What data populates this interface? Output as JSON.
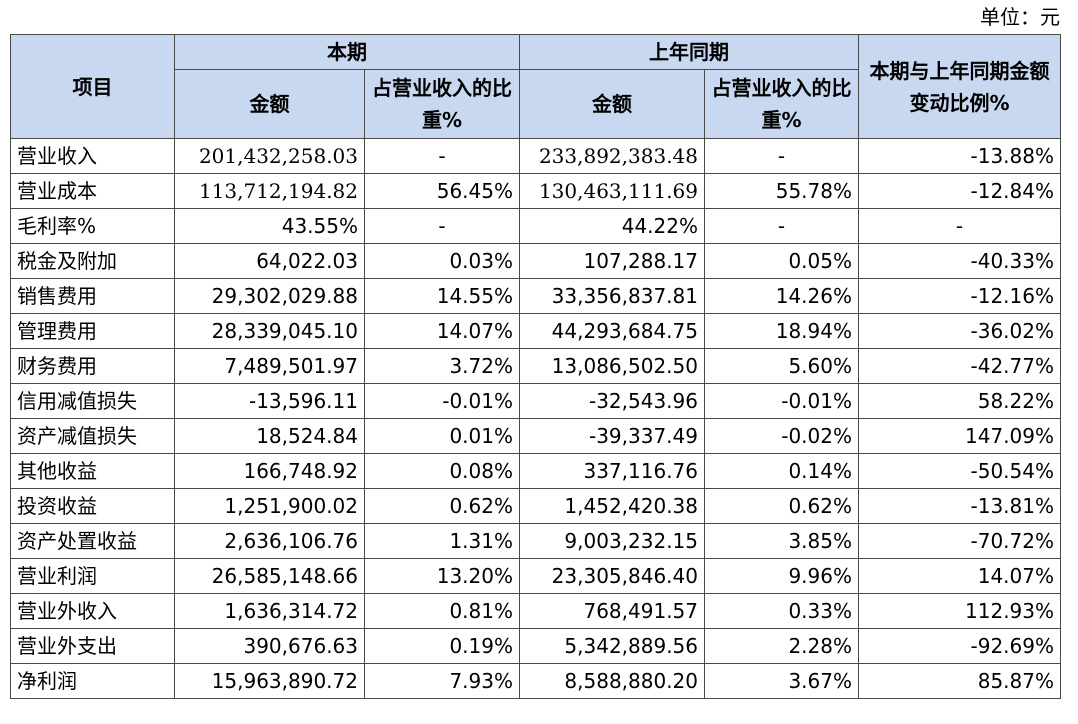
{
  "unit_label": "单位：元",
  "header": {
    "item": "项目",
    "current": "本期",
    "prior": "上年同期",
    "change": "本期与上年同期金额变动比例%",
    "amount": "金额",
    "ratio": "占营业收入的比重%"
  },
  "rows": [
    {
      "item": "营业收入",
      "cur_amount": "201,432,258.03",
      "cur_ratio": "-",
      "prior_amount": "233,892,383.48",
      "prior_ratio": "-",
      "change": "-13.88%"
    },
    {
      "item": "营业成本",
      "cur_amount": "113,712,194.82",
      "cur_ratio": "56.45%",
      "prior_amount": "130,463,111.69",
      "prior_ratio": "55.78%",
      "change": "-12.84%"
    },
    {
      "item": "毛利率%",
      "cur_amount": "43.55%",
      "cur_ratio": "-",
      "prior_amount": "44.22%",
      "prior_ratio": "-",
      "change": "-"
    },
    {
      "item": "税金及附加",
      "cur_amount": "64,022.03",
      "cur_ratio": "0.03%",
      "prior_amount": "107,288.17",
      "prior_ratio": "0.05%",
      "change": "-40.33%"
    },
    {
      "item": "销售费用",
      "cur_amount": "29,302,029.88",
      "cur_ratio": "14.55%",
      "prior_amount": "33,356,837.81",
      "prior_ratio": "14.26%",
      "change": "-12.16%"
    },
    {
      "item": "管理费用",
      "cur_amount": "28,339,045.10",
      "cur_ratio": "14.07%",
      "prior_amount": "44,293,684.75",
      "prior_ratio": "18.94%",
      "change": "-36.02%"
    },
    {
      "item": "财务费用",
      "cur_amount": "7,489,501.97",
      "cur_ratio": "3.72%",
      "prior_amount": "13,086,502.50",
      "prior_ratio": "5.60%",
      "change": "-42.77%"
    },
    {
      "item": "信用减值损失",
      "cur_amount": "-13,596.11",
      "cur_ratio": "-0.01%",
      "prior_amount": "-32,543.96",
      "prior_ratio": "-0.01%",
      "change": "58.22%"
    },
    {
      "item": "资产减值损失",
      "cur_amount": "18,524.84",
      "cur_ratio": "0.01%",
      "prior_amount": "-39,337.49",
      "prior_ratio": "-0.02%",
      "change": "147.09%"
    },
    {
      "item": "其他收益",
      "cur_amount": "166,748.92",
      "cur_ratio": "0.08%",
      "prior_amount": "337,116.76",
      "prior_ratio": "0.14%",
      "change": "-50.54%"
    },
    {
      "item": "投资收益",
      "cur_amount": "1,251,900.02",
      "cur_ratio": "0.62%",
      "prior_amount": "1,452,420.38",
      "prior_ratio": "0.62%",
      "change": "-13.81%"
    },
    {
      "item": "资产处置收益",
      "cur_amount": "2,636,106.76",
      "cur_ratio": "1.31%",
      "prior_amount": "9,003,232.15",
      "prior_ratio": "3.85%",
      "change": "-70.72%"
    },
    {
      "item": "营业利润",
      "cur_amount": "26,585,148.66",
      "cur_ratio": "13.20%",
      "prior_amount": "23,305,846.40",
      "prior_ratio": "9.96%",
      "change": "14.07%"
    },
    {
      "item": "营业外收入",
      "cur_amount": "1,636,314.72",
      "cur_ratio": "0.81%",
      "prior_amount": "768,491.57",
      "prior_ratio": "0.33%",
      "change": "112.93%"
    },
    {
      "item": "营业外支出",
      "cur_amount": "390,676.63",
      "cur_ratio": "0.19%",
      "prior_amount": "5,342,889.56",
      "prior_ratio": "2.28%",
      "change": "-92.69%"
    },
    {
      "item": "净利润",
      "cur_amount": "15,963,890.72",
      "cur_ratio": "7.93%",
      "prior_amount": "8,588,880.20",
      "prior_ratio": "3.67%",
      "change": "85.87%"
    }
  ]
}
